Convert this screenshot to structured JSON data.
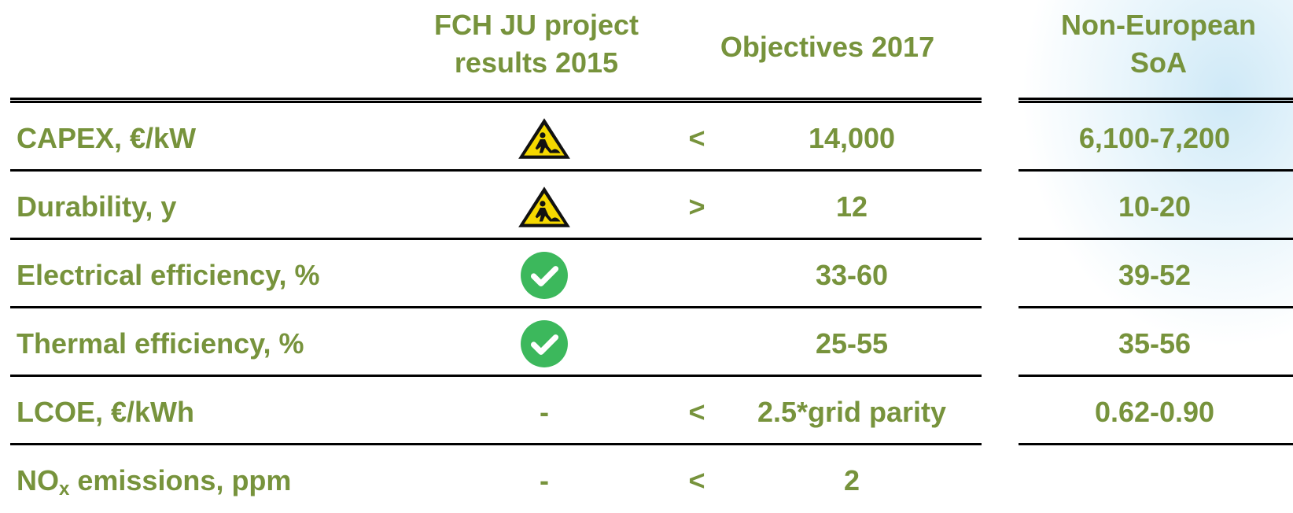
{
  "header": {
    "col1": "FCH JU project results 2015",
    "col2": "Objectives 2017",
    "col3": "Non-European SoA"
  },
  "rows": [
    {
      "label": "CAPEX, €/kW",
      "comparator": "<",
      "objective": "14,000",
      "soa": "6,100-7,200"
    },
    {
      "label": "Durability, y",
      "comparator": ">",
      "objective": "12",
      "soa": "10-20"
    },
    {
      "label": "Electrical efficiency, %",
      "objective": "33-60",
      "soa": "39-52"
    },
    {
      "label": "Thermal efficiency, %",
      "objective": "25-55",
      "soa": "35-56"
    },
    {
      "label": "LCOE, €/kWh",
      "result": "-",
      "comparator": "<",
      "objective": "2.5*grid parity",
      "soa": "0.62-0.90"
    },
    {
      "label": "NO",
      "label_sub": "x",
      "label_rest": " emissions, ppm",
      "result": "-",
      "comparator": "<",
      "objective": "2"
    }
  ]
}
